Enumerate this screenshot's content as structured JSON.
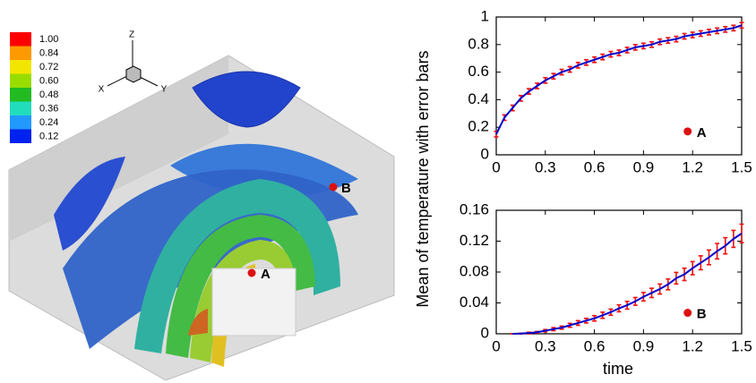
{
  "render": {
    "colorbar": [
      {
        "value": 1.0,
        "label": "1.00",
        "color": "#ff0000"
      },
      {
        "value": 0.84,
        "label": "0.84",
        "color": "#ff9900"
      },
      {
        "value": 0.72,
        "label": "0.72",
        "color": "#f2e600"
      },
      {
        "value": 0.6,
        "label": "0.60",
        "color": "#99dd00"
      },
      {
        "value": 0.48,
        "label": "0.48",
        "color": "#22bb22"
      },
      {
        "value": 0.36,
        "label": "0.36",
        "color": "#22ddbb"
      },
      {
        "value": 0.24,
        "label": "0.24",
        "color": "#2299ff"
      },
      {
        "value": 0.12,
        "label": "0.12",
        "color": "#0022ee"
      }
    ],
    "axes": {
      "z": "Z",
      "x": "X",
      "y": "Y"
    },
    "points": [
      "A",
      "B"
    ]
  },
  "chart_data": [
    {
      "type": "errorline",
      "annotation": "A",
      "ylabel": "Mean of temperature with error bars",
      "x": [
        0,
        0.05,
        0.1,
        0.15,
        0.2,
        0.25,
        0.3,
        0.35,
        0.4,
        0.45,
        0.5,
        0.55,
        0.6,
        0.65,
        0.7,
        0.75,
        0.8,
        0.85,
        0.9,
        0.95,
        1.0,
        1.05,
        1.1,
        1.15,
        1.2,
        1.25,
        1.3,
        1.35,
        1.4,
        1.45,
        1.5
      ],
      "series": [
        {
          "color": "#0000cc",
          "error_color": "#ee1111",
          "values": [
            0.15,
            0.27,
            0.34,
            0.41,
            0.46,
            0.5,
            0.54,
            0.57,
            0.6,
            0.62,
            0.65,
            0.67,
            0.69,
            0.71,
            0.73,
            0.74,
            0.76,
            0.78,
            0.79,
            0.8,
            0.82,
            0.83,
            0.84,
            0.86,
            0.87,
            0.88,
            0.89,
            0.9,
            0.91,
            0.92,
            0.94
          ],
          "errors": [
            0.02,
            0.02,
            0.02,
            0.02,
            0.02,
            0.02,
            0.02,
            0.02,
            0.02,
            0.02,
            0.02,
            0.02,
            0.02,
            0.02,
            0.02,
            0.02,
            0.02,
            0.02,
            0.02,
            0.02,
            0.02,
            0.02,
            0.02,
            0.02,
            0.02,
            0.02,
            0.02,
            0.02,
            0.02,
            0.02,
            0.02
          ]
        }
      ],
      "xlim": [
        0,
        1.5
      ],
      "xticks": [
        0,
        0.3,
        0.6,
        0.9,
        1.2,
        1.5
      ],
      "ylim": [
        0,
        1
      ],
      "yticks": [
        0,
        0.2,
        0.4,
        0.6,
        0.8,
        1
      ]
    },
    {
      "type": "errorline",
      "annotation": "B",
      "xlabel": "time",
      "x": [
        0.1,
        0.15,
        0.2,
        0.25,
        0.3,
        0.35,
        0.4,
        0.45,
        0.5,
        0.55,
        0.6,
        0.65,
        0.7,
        0.75,
        0.8,
        0.85,
        0.9,
        0.95,
        1.0,
        1.05,
        1.1,
        1.15,
        1.2,
        1.25,
        1.3,
        1.35,
        1.4,
        1.45,
        1.5
      ],
      "series": [
        {
          "color": "#0000cc",
          "error_color": "#ee1111",
          "values": [
            0,
            0.0003,
            0.001,
            0.002,
            0.004,
            0.006,
            0.008,
            0.011,
            0.014,
            0.017,
            0.02,
            0.024,
            0.028,
            0.033,
            0.037,
            0.042,
            0.048,
            0.053,
            0.058,
            0.064,
            0.072,
            0.077,
            0.085,
            0.092,
            0.099,
            0.107,
            0.114,
            0.123,
            0.13
          ],
          "errors": [
            0,
            0.0005,
            0.001,
            0.001,
            0.0015,
            0.002,
            0.002,
            0.0025,
            0.003,
            0.003,
            0.0035,
            0.004,
            0.004,
            0.0045,
            0.005,
            0.005,
            0.0055,
            0.006,
            0.0065,
            0.007,
            0.0075,
            0.008,
            0.0085,
            0.009,
            0.0095,
            0.01,
            0.0105,
            0.011,
            0.012
          ]
        }
      ],
      "xlim": [
        0,
        1.5
      ],
      "xticks": [
        0,
        0.3,
        0.6,
        0.9,
        1.2,
        1.5
      ],
      "ylim": [
        0,
        0.16
      ],
      "yticks": [
        0,
        0.04,
        0.08,
        0.12,
        0.16
      ]
    }
  ]
}
